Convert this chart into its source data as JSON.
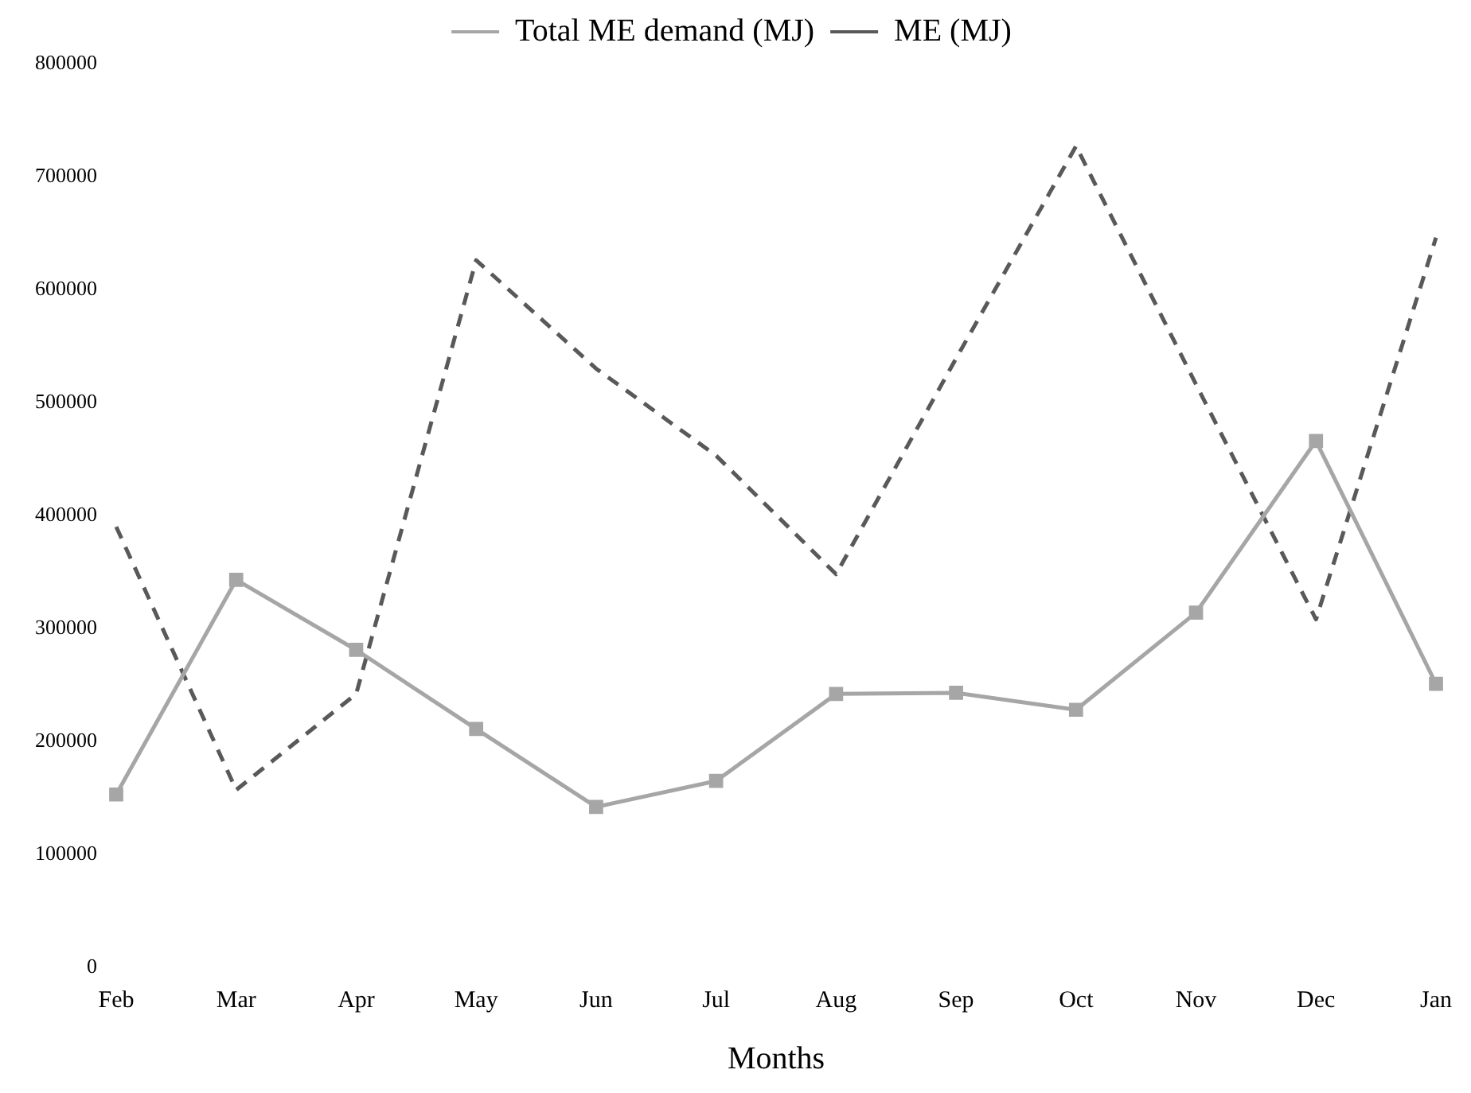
{
  "chart_data": {
    "type": "line",
    "xlabel": "Months",
    "categories": [
      "Feb",
      "Mar",
      "Apr",
      "May",
      "Jun",
      "Jul",
      "Aug",
      "Sep",
      "Oct",
      "Nov",
      "Dec",
      "Jan"
    ],
    "series": [
      {
        "name": "Total ME demand (MJ)",
        "color": "#a6a6a6",
        "marker": "square",
        "line_style": "solid",
        "values": [
          153000,
          343000,
          281000,
          211000,
          142000,
          165000,
          242000,
          243000,
          228000,
          314000,
          466000,
          251000
        ]
      },
      {
        "name": "ME (MJ)",
        "color": "#595959",
        "marker": "none",
        "line_style": "dashed",
        "values": [
          390000,
          157000,
          242000,
          626000,
          530000,
          453000,
          348000,
          539000,
          727000,
          516000,
          308000,
          646000
        ]
      }
    ],
    "ylim": [
      0,
      800000
    ],
    "yticks": [
      0,
      100000,
      200000,
      300000,
      400000,
      500000,
      600000,
      700000,
      800000
    ],
    "grid": false,
    "legend": "top"
  }
}
